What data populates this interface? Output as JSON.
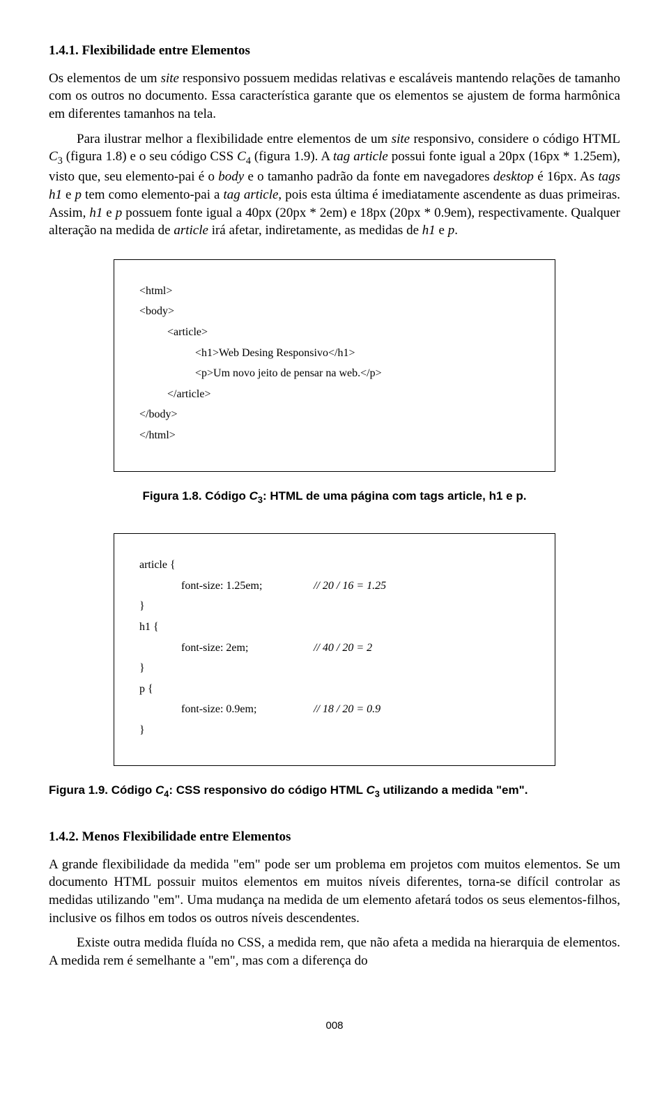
{
  "section1": {
    "number": "1.4.1.",
    "title": "Flexibilidade entre Elementos",
    "p1": "Os elementos de um site responsivo possuem medidas relativas e escaláveis mantendo relações de tamanho com os outros no documento. Essa característica garante que os elementos se ajustem de forma harmônica em diferentes tamanhos na tela.",
    "p2_a": "Para ilustrar melhor a flexibilidade entre elementos de um ",
    "p2_site": "site",
    "p2_b": " responsivo, considere o código HTML ",
    "p2_c3": "C",
    "p2_c3sub": "3",
    "p2_c": " (figura 1.8) e o seu código CSS ",
    "p2_c4": "C",
    "p2_c4sub": "4",
    "p2_d": " (figura 1.9). A ",
    "p2_tag1": "tag article",
    "p2_e": " possui fonte igual a 20px (16px * 1.25em), visto que, seu elemento-pai é o ",
    "p2_body": "body",
    "p2_f": " e o tamanho padrão da fonte em navegadores ",
    "p2_desktop": "desktop",
    "p2_g": " é 16px. As ",
    "p2_tags2": "tags h1",
    "p2_h": " e ",
    "p2_p1": "p",
    "p2_i": " tem como elemento-pai a ",
    "p2_tag3": "tag article",
    "p2_j": ", pois esta última é imediatamente ascendente as duas primeiras. Assim, ",
    "p2_h1": "h1",
    "p2_k": " e ",
    "p2_p2": "p",
    "p2_l": " possuem fonte igual a 40px (20px * 2em) e 18px (20px * 0.9em), respectivamente. Qualquer alteração na medida de ",
    "p2_article": "article",
    "p2_m": " irá afetar, indiretamente, as medidas de ",
    "p2_h1b": "h1",
    "p2_n": " e ",
    "p2_p3": "p",
    "p2_o": "."
  },
  "code1": {
    "l1": "<html>",
    "l2": "<body>",
    "l3": "<article>",
    "l4": "<h1>Web Desing Responsivo</h1>",
    "l5": "<p>Um novo jeito de pensar na web.</p>",
    "l6": "</article>",
    "l7": "</body>",
    "l8": "</html>"
  },
  "fig1": {
    "a": "Figura 1.8. Código ",
    "c": "C",
    "csub": "3",
    "b": ": HTML de uma página com tags article, h1 e p."
  },
  "code2": {
    "l1": "article {",
    "l2a": "font-size: 1.25em;",
    "l2b": "// 20 / 16 = 1.25",
    "l3": "}",
    "l4": "h1 {",
    "l5a": "font-size: 2em;",
    "l5b": "// 40 / 20 = 2",
    "l6": "}",
    "l7": "p {",
    "l8a": "font-size: 0.9em;",
    "l8b": "// 18 / 20 = 0.9",
    "l9": "}"
  },
  "fig2": {
    "a": "Figura 1.9. Código ",
    "c1": "C",
    "c1sub": "4",
    "b": ": CSS responsivo do código HTML ",
    "c2": "C",
    "c2sub": "3",
    "d": " utilizando a medida \"em\"."
  },
  "section2": {
    "number": "1.4.2.",
    "title": "Menos Flexibilidade entre Elementos",
    "p1": "A grande flexibilidade da medida \"em\" pode ser um problema em projetos com muitos elementos. Se um documento HTML possuir muitos elementos em muitos níveis diferentes, torna-se difícil controlar as medidas utilizando \"em\". Uma mudança na medida de um elemento afetará todos os seus elementos-filhos, inclusive os filhos em todos os outros níveis descendentes.",
    "p2": "Existe outra medida fluída no CSS, a medida rem, que não afeta a medida na hierarquia de elementos. A medida rem é semelhante a \"em\", mas com a diferença do"
  },
  "pageno": "008"
}
